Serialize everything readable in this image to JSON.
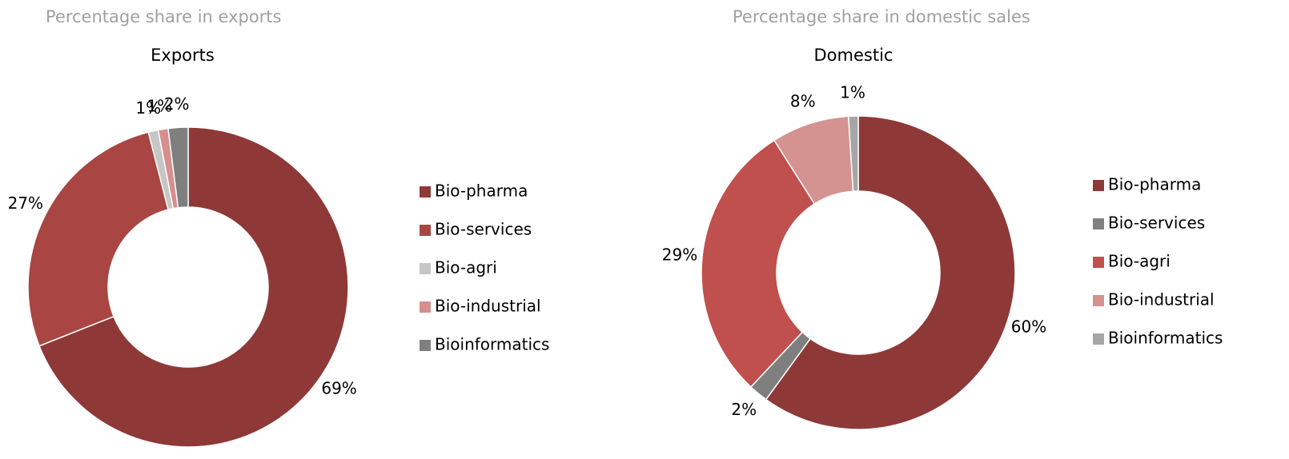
{
  "chart_data": [
    {
      "type": "donut",
      "heading": "Percentage share in exports",
      "title": "Exports",
      "categories": [
        "Bio-pharma",
        "Bio-services",
        "Bio-agri",
        "Bio-industrial",
        "Bioinformatics"
      ],
      "values": [
        69,
        27,
        1,
        1,
        2
      ],
      "value_labels": [
        "69%",
        "27%",
        "1%",
        "1%",
        "2%"
      ],
      "colors": [
        "#8e3937",
        "#a94542",
        "#c6c6c6",
        "#d68f8e",
        "#7f7f7f"
      ]
    },
    {
      "type": "donut",
      "heading": "Percentage share in domestic sales",
      "title": "Domestic",
      "categories": [
        "Bio-pharma",
        "Bio-services",
        "Bio-agri",
        "Bio-industrial",
        "Bioinformatics"
      ],
      "values": [
        60,
        2,
        29,
        8,
        1
      ],
      "value_labels": [
        "60%",
        "2%",
        "29%",
        "8%",
        "1%"
      ],
      "colors": [
        "#8e3937",
        "#7f7f7f",
        "#c0504d",
        "#d49291",
        "#a6a6a6"
      ]
    }
  ]
}
